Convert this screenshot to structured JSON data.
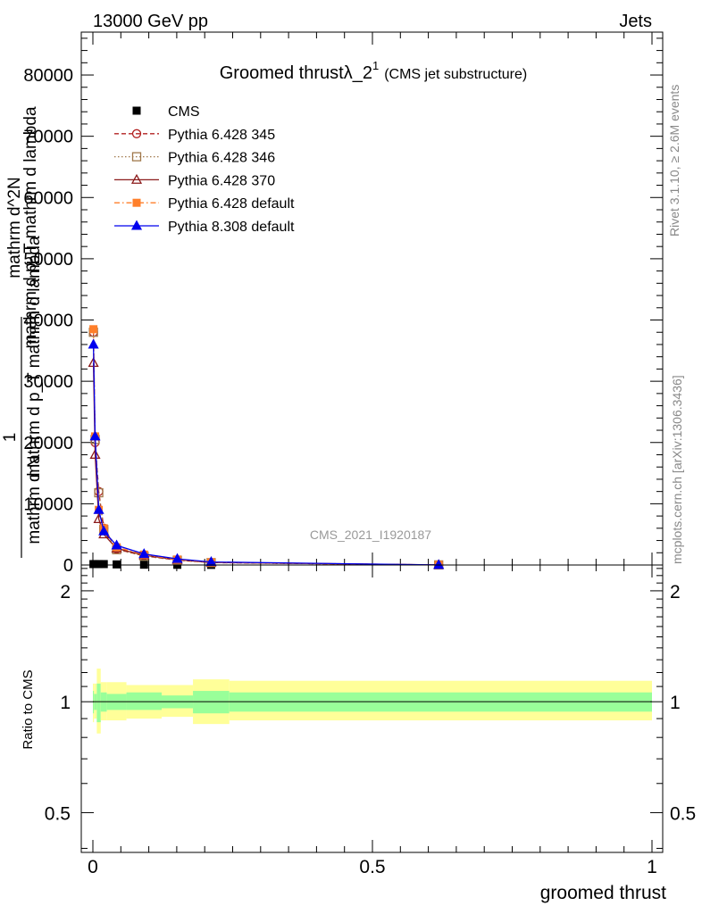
{
  "header": {
    "beam_label": "13000 GeV pp",
    "process_label": "Jets"
  },
  "side_labels": {
    "rivet": "Rivet 3.1.10, ≥ 2.6M events",
    "mcplots": "mcplots.cern.ch [arXiv:1306.3436]"
  },
  "watermark": "CMS_2021_I1920187",
  "chart_data": [
    {
      "type": "line",
      "panel": "main",
      "title": "Groomed thrustλ_2",
      "title_superscript": "1",
      "subtitle": "(CMS jet substructure)",
      "ylabel_numerator": "1",
      "ylabel_denominator": "mathrm d N",
      "ylabel_line1": "mathrm d^2N",
      "ylabel_line2": "mathrm d p_T mathrm d lambda",
      "ylabel_line3": "mathrm d p_T mathrm d lambda",
      "xlim": [
        0,
        1
      ],
      "ylim": [
        0,
        87000
      ],
      "y_ticks": [
        0,
        10000,
        20000,
        30000,
        40000,
        50000,
        60000,
        70000,
        80000
      ],
      "y_tick_labels": [
        "0",
        "10000",
        "20000",
        "30000",
        "40000",
        "50000",
        "60000",
        "70000",
        "80000"
      ],
      "legend_position": "top-left",
      "series": [
        {
          "name": "CMS",
          "color": "#000000",
          "marker": "square-filled",
          "dash": "none",
          "x": [
            0.001,
            0.004,
            0.0105,
            0.0195,
            0.0425,
            0.0915,
            0.151,
            0.2115,
            0.6185
          ],
          "y": [
            150,
            150,
            150,
            150,
            100,
            50,
            30,
            20,
            5
          ]
        },
        {
          "name": "Pythia 6.428 345",
          "color": "#b22222",
          "marker": "circle-open",
          "dash": "dashed",
          "x": [
            0.001,
            0.004,
            0.0105,
            0.0195,
            0.0425,
            0.0915,
            0.151,
            0.2115,
            0.6185
          ],
          "y": [
            38000,
            20000,
            12000,
            6000,
            2600,
            1500,
            800,
            400,
            15
          ]
        },
        {
          "name": "Pythia 6.428 346",
          "color": "#a0784b",
          "marker": "square-open",
          "dash": "dotted",
          "x": [
            0.001,
            0.004,
            0.0105,
            0.0195,
            0.0425,
            0.0915,
            0.151,
            0.2115,
            0.6185
          ],
          "y": [
            38000,
            20500,
            11800,
            5800,
            2500,
            1450,
            780,
            390,
            15
          ]
        },
        {
          "name": "Pythia 6.428 370",
          "color": "#8b1a1a",
          "marker": "triangle-open",
          "dash": "none",
          "x": [
            0.001,
            0.004,
            0.0105,
            0.0195,
            0.0425,
            0.0915,
            0.151,
            0.2115,
            0.6185
          ],
          "y": [
            33000,
            18000,
            7500,
            5000,
            2700,
            1600,
            850,
            420,
            15
          ]
        },
        {
          "name": "Pythia 6.428 default",
          "color": "#ff7f2a",
          "marker": "square-filled",
          "dash": "dashdot",
          "x": [
            0.001,
            0.004,
            0.0105,
            0.0195,
            0.0425,
            0.0915,
            0.151,
            0.2115,
            0.6185
          ],
          "y": [
            38500,
            21000,
            9000,
            6000,
            2900,
            1700,
            900,
            450,
            20
          ]
        },
        {
          "name": "Pythia 8.308 default",
          "color": "#0000ee",
          "marker": "triangle-filled",
          "dash": "none",
          "x": [
            0.001,
            0.004,
            0.0105,
            0.0195,
            0.0425,
            0.0915,
            0.151,
            0.2115,
            0.6185
          ],
          "y": [
            36000,
            21000,
            9000,
            5500,
            3200,
            1800,
            1000,
            500,
            20
          ]
        }
      ]
    },
    {
      "type": "area",
      "panel": "ratio",
      "xlabel": "groomed thrust",
      "ylabel": "Ratio to CMS",
      "xlim": [
        0,
        1
      ],
      "ylim": [
        0.39,
        2.35
      ],
      "x_ticks": [
        0,
        0.5,
        1
      ],
      "x_tick_labels": [
        "0",
        "0.5",
        "1"
      ],
      "y_ticks": [
        0.5,
        1,
        2
      ],
      "y_tick_labels": [
        "0.5",
        "1",
        "2"
      ],
      "log_y": true,
      "reference_line": 1,
      "bands": {
        "bin_edges": [
          0,
          0.002,
          0.007,
          0.014,
          0.025,
          0.06,
          0.123,
          0.179,
          0.244,
          1
        ],
        "inner_color": "#99ff99",
        "outer_color": "#ffff99",
        "inner_low": [
          0.93,
          0.95,
          0.88,
          0.94,
          0.95,
          0.95,
          0.96,
          0.93,
          0.94
        ],
        "inner_high": [
          1.07,
          1.05,
          1.12,
          1.06,
          1.05,
          1.06,
          1.04,
          1.07,
          1.06
        ],
        "outer_low": [
          0.88,
          0.9,
          0.82,
          0.89,
          0.89,
          0.9,
          0.91,
          0.87,
          0.89
        ],
        "outer_high": [
          1.12,
          1.12,
          1.23,
          1.13,
          1.13,
          1.11,
          1.11,
          1.15,
          1.14
        ]
      }
    }
  ]
}
